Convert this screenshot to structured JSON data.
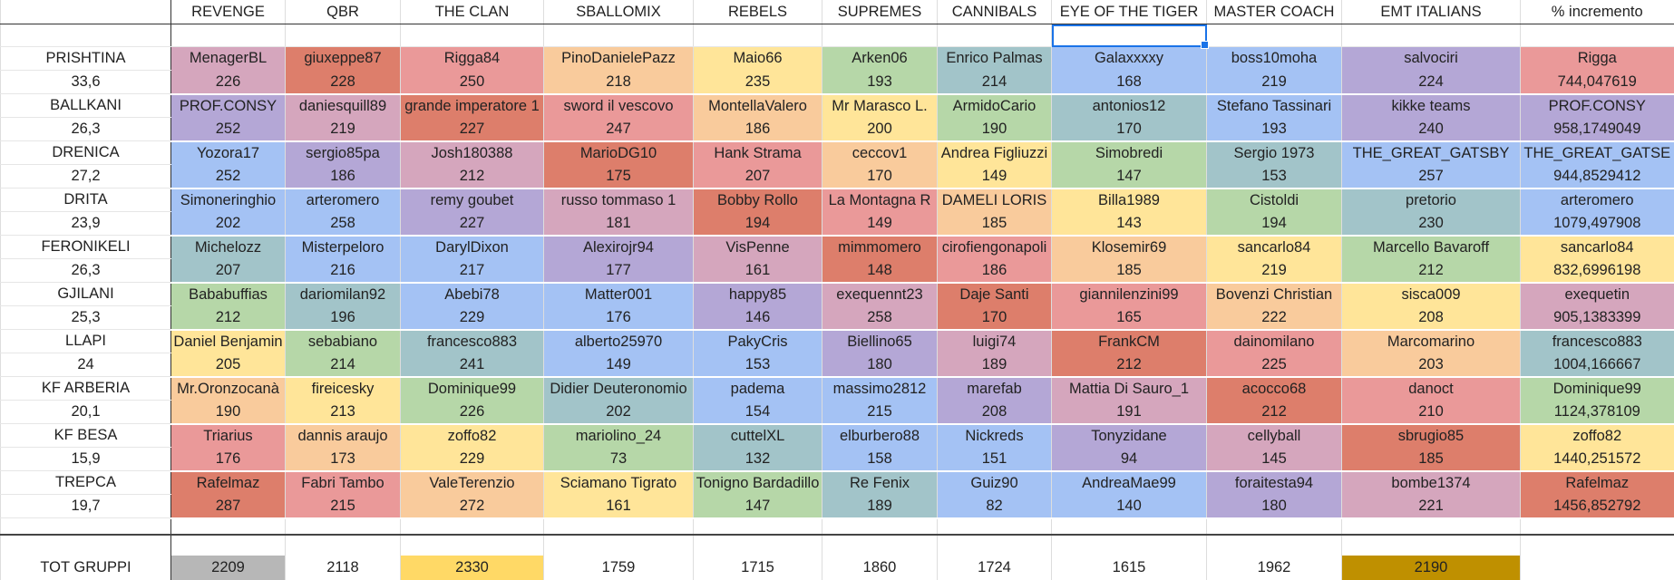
{
  "colors": {
    "pink": "#d5a6bd",
    "orange_dark": "#dd7e6b",
    "red_light": "#ea9999",
    "peach": "#f9cb9c",
    "yellow": "#ffe599",
    "green": "#b6d7a8",
    "teal": "#a2c4c9",
    "blue": "#a4c2f4",
    "purple": "#b4a7d6",
    "gray": "#b7b7b7",
    "gold": "#ffd966",
    "dark_gold": "#bf9000"
  },
  "headers": [
    "REVENGE",
    "QBR",
    "THE CLAN",
    "SBALLOMIX",
    "REBELS",
    "SUPREMES",
    "CANNIBALS",
    "EYE OF THE TIGER",
    "MASTER COACH",
    "EMT ITALIANS",
    "% incremento"
  ],
  "groups": [
    {
      "team": "PRISHTINA",
      "avg": "33,6",
      "players": [
        {
          "n": "MenagerBL",
          "s": "226",
          "c": "pink"
        },
        {
          "n": "giuxeppe87",
          "s": "228",
          "c": "orange_dark"
        },
        {
          "n": "Rigga84",
          "s": "250",
          "c": "red_light"
        },
        {
          "n": "PinoDanielePazz",
          "s": "218",
          "c": "peach"
        },
        {
          "n": "Maio66",
          "s": "235",
          "c": "yellow"
        },
        {
          "n": "Arken06",
          "s": "193",
          "c": "green"
        },
        {
          "n": "Enrico Palmas",
          "s": "214",
          "c": "teal"
        },
        {
          "n": "Galaxxxxy",
          "s": "168",
          "c": "blue"
        },
        {
          "n": "boss10moha",
          "s": "219",
          "c": "blue"
        },
        {
          "n": "salvociri",
          "s": "224",
          "c": "purple"
        },
        {
          "n": "Rigga",
          "s": "744,047619",
          "c": "red_light"
        }
      ]
    },
    {
      "team": "BALLKANI",
      "avg": "26,3",
      "players": [
        {
          "n": "PROF.CONSY",
          "s": "252",
          "c": "purple"
        },
        {
          "n": "daniesquill89",
          "s": "219",
          "c": "pink"
        },
        {
          "n": "grande imperatore 1",
          "s": "227",
          "c": "orange_dark"
        },
        {
          "n": "sword il vescovo",
          "s": "247",
          "c": "red_light"
        },
        {
          "n": "MontellaValero",
          "s": "186",
          "c": "peach"
        },
        {
          "n": "Mr Marasco L.",
          "s": "200",
          "c": "yellow"
        },
        {
          "n": "ArmidoCario",
          "s": "190",
          "c": "green"
        },
        {
          "n": "antonios12",
          "s": "170",
          "c": "teal"
        },
        {
          "n": "Stefano Tassinari",
          "s": "193",
          "c": "blue"
        },
        {
          "n": "kikke teams",
          "s": "240",
          "c": "purple"
        },
        {
          "n": "PROF.CONSY",
          "s": "958,1749049",
          "c": "purple"
        }
      ]
    },
    {
      "team": "DRENICA",
      "avg": "27,2",
      "players": [
        {
          "n": "Yozora17",
          "s": "252",
          "c": "blue"
        },
        {
          "n": "sergio85pa",
          "s": "186",
          "c": "purple"
        },
        {
          "n": "Josh180388",
          "s": "212",
          "c": "pink"
        },
        {
          "n": "MarioDG10",
          "s": "175",
          "c": "orange_dark"
        },
        {
          "n": "Hank Strama",
          "s": "207",
          "c": "red_light"
        },
        {
          "n": "ceccov1",
          "s": "170",
          "c": "peach"
        },
        {
          "n": "Andrea Figliuzzi",
          "s": "149",
          "c": "yellow"
        },
        {
          "n": "Simobredi",
          "s": "147",
          "c": "green"
        },
        {
          "n": "Sergio 1973",
          "s": "153",
          "c": "teal"
        },
        {
          "n": "THE_GREAT_GATSBY",
          "s": "257",
          "c": "blue"
        },
        {
          "n": "THE_GREAT_GATSE",
          "s": "944,8529412",
          "c": "blue"
        }
      ]
    },
    {
      "team": "DRITA",
      "avg": "23,9",
      "players": [
        {
          "n": "Simoneringhio",
          "s": "202",
          "c": "blue"
        },
        {
          "n": "arteromero",
          "s": "258",
          "c": "blue"
        },
        {
          "n": "remy goubet",
          "s": "227",
          "c": "purple"
        },
        {
          "n": "russo tommaso 1",
          "s": "181",
          "c": "pink"
        },
        {
          "n": "Bobby Rollo",
          "s": "194",
          "c": "orange_dark"
        },
        {
          "n": "La Montagna R",
          "s": "149",
          "c": "red_light"
        },
        {
          "n": "DAMELI LORIS",
          "s": "185",
          "c": "peach"
        },
        {
          "n": "Billa1989",
          "s": "143",
          "c": "yellow"
        },
        {
          "n": "Cistoldi",
          "s": "194",
          "c": "green"
        },
        {
          "n": "pretorio",
          "s": "230",
          "c": "teal"
        },
        {
          "n": "arteromero",
          "s": "1079,497908",
          "c": "blue"
        }
      ]
    },
    {
      "team": "FERONIKELI",
      "avg": "26,3",
      "players": [
        {
          "n": "Michelozz",
          "s": "207",
          "c": "teal"
        },
        {
          "n": "Misterpeloro",
          "s": "216",
          "c": "blue"
        },
        {
          "n": "DarylDixon",
          "s": "217",
          "c": "blue"
        },
        {
          "n": "Alexirojr94",
          "s": "177",
          "c": "purple"
        },
        {
          "n": "VisPenne",
          "s": "161",
          "c": "pink"
        },
        {
          "n": "mimmomero",
          "s": "148",
          "c": "orange_dark"
        },
        {
          "n": "cirofiengonapoli",
          "s": "186",
          "c": "red_light"
        },
        {
          "n": "Klosemir69",
          "s": "185",
          "c": "peach"
        },
        {
          "n": "sancarlo84",
          "s": "219",
          "c": "yellow"
        },
        {
          "n": "Marcello Bavaroff",
          "s": "212",
          "c": "green"
        },
        {
          "n": "sancarlo84",
          "s": "832,6996198",
          "c": "yellow"
        }
      ]
    },
    {
      "team": "GJILANI",
      "avg": "25,3",
      "players": [
        {
          "n": "Bababuffias",
          "s": "212",
          "c": "green"
        },
        {
          "n": "dariomilan92",
          "s": "196",
          "c": "teal"
        },
        {
          "n": "Abebi78",
          "s": "229",
          "c": "blue"
        },
        {
          "n": "Matter001",
          "s": "176",
          "c": "blue"
        },
        {
          "n": "happy85",
          "s": "146",
          "c": "purple"
        },
        {
          "n": "exequennt23",
          "s": "258",
          "c": "pink"
        },
        {
          "n": "Daje Santi",
          "s": "170",
          "c": "orange_dark"
        },
        {
          "n": "giannilenzini99",
          "s": "165",
          "c": "red_light"
        },
        {
          "n": "Bovenzi Christian",
          "s": "222",
          "c": "peach"
        },
        {
          "n": "sisca009",
          "s": "208",
          "c": "yellow"
        },
        {
          "n": "exequetin",
          "s": "905,1383399",
          "c": "pink"
        }
      ]
    },
    {
      "team": "LLAPI",
      "avg": "24",
      "players": [
        {
          "n": "Daniel Benjamin",
          "s": "205",
          "c": "yellow"
        },
        {
          "n": "sebabiano",
          "s": "214",
          "c": "green"
        },
        {
          "n": "francesco883",
          "s": "241",
          "c": "teal"
        },
        {
          "n": "alberto25970",
          "s": "149",
          "c": "blue"
        },
        {
          "n": "PakyCris",
          "s": "153",
          "c": "blue"
        },
        {
          "n": "Biellino65",
          "s": "180",
          "c": "purple"
        },
        {
          "n": "luigi74",
          "s": "189",
          "c": "pink"
        },
        {
          "n": "FrankCM",
          "s": "212",
          "c": "orange_dark"
        },
        {
          "n": "dainomilano",
          "s": "225",
          "c": "red_light"
        },
        {
          "n": "Marcomarino",
          "s": "203",
          "c": "peach"
        },
        {
          "n": "francesco883",
          "s": "1004,166667",
          "c": "teal"
        }
      ]
    },
    {
      "team": "KF ARBERIA",
      "avg": "20,1",
      "players": [
        {
          "n": "Mr.Oronzocanà",
          "s": "190",
          "c": "peach"
        },
        {
          "n": "fireicesky",
          "s": "213",
          "c": "yellow"
        },
        {
          "n": "Dominique99",
          "s": "226",
          "c": "green"
        },
        {
          "n": "Didier Deuteronomio",
          "s": "202",
          "c": "teal"
        },
        {
          "n": "padema",
          "s": "154",
          "c": "blue"
        },
        {
          "n": "massimo2812",
          "s": "215",
          "c": "blue"
        },
        {
          "n": "marefab",
          "s": "208",
          "c": "purple"
        },
        {
          "n": "Mattia Di Sauro_1",
          "s": "191",
          "c": "pink"
        },
        {
          "n": "acocco68",
          "s": "212",
          "c": "orange_dark"
        },
        {
          "n": "danoct",
          "s": "210",
          "c": "red_light"
        },
        {
          "n": "Dominique99",
          "s": "1124,378109",
          "c": "green"
        }
      ]
    },
    {
      "team": "KF BESA",
      "avg": "15,9",
      "players": [
        {
          "n": "Triarius",
          "s": "176",
          "c": "red_light"
        },
        {
          "n": "dannis araujo",
          "s": "173",
          "c": "peach"
        },
        {
          "n": "zoffo82",
          "s": "229",
          "c": "yellow"
        },
        {
          "n": "mariolino_24",
          "s": "73",
          "c": "green"
        },
        {
          "n": "cuttelXL",
          "s": "132",
          "c": "teal"
        },
        {
          "n": "elburbero88",
          "s": "158",
          "c": "blue"
        },
        {
          "n": "Nickreds",
          "s": "151",
          "c": "blue"
        },
        {
          "n": "Tonyzidane",
          "s": "94",
          "c": "purple"
        },
        {
          "n": "cellyball",
          "s": "145",
          "c": "pink"
        },
        {
          "n": "sbrugio85",
          "s": "185",
          "c": "orange_dark"
        },
        {
          "n": "zoffo82",
          "s": "1440,251572",
          "c": "yellow"
        }
      ]
    },
    {
      "team": "TREPCA",
      "avg": "19,7",
      "players": [
        {
          "n": "Rafelmaz",
          "s": "287",
          "c": "orange_dark"
        },
        {
          "n": "Fabri Tambo",
          "s": "215",
          "c": "red_light"
        },
        {
          "n": "ValeTerenzio",
          "s": "272",
          "c": "peach"
        },
        {
          "n": "Sciamano Tigrato",
          "s": "161",
          "c": "yellow"
        },
        {
          "n": "Tonigno Bardadillo",
          "s": "147",
          "c": "green"
        },
        {
          "n": "Re Fenix",
          "s": "189",
          "c": "teal"
        },
        {
          "n": "Guiz90",
          "s": "82",
          "c": "blue"
        },
        {
          "n": "AndreaMae99",
          "s": "140",
          "c": "blue"
        },
        {
          "n": "foraitesta94",
          "s": "180",
          "c": "purple"
        },
        {
          "n": "bombe1374",
          "s": "221",
          "c": "pink"
        },
        {
          "n": "Rafelmaz",
          "s": "1456,852792",
          "c": "orange_dark"
        }
      ]
    }
  ],
  "totals": {
    "label": "TOT GRUPPI",
    "values": [
      {
        "v": "2209",
        "c": "gray"
      },
      {
        "v": "2118",
        "c": ""
      },
      {
        "v": "2330",
        "c": "gold"
      },
      {
        "v": "1759",
        "c": ""
      },
      {
        "v": "1715",
        "c": ""
      },
      {
        "v": "1860",
        "c": ""
      },
      {
        "v": "1724",
        "c": ""
      },
      {
        "v": "1615",
        "c": ""
      },
      {
        "v": "1962",
        "c": ""
      },
      {
        "v": "2190",
        "c": "dark_gold"
      },
      {
        "v": "",
        "c": ""
      }
    ]
  }
}
